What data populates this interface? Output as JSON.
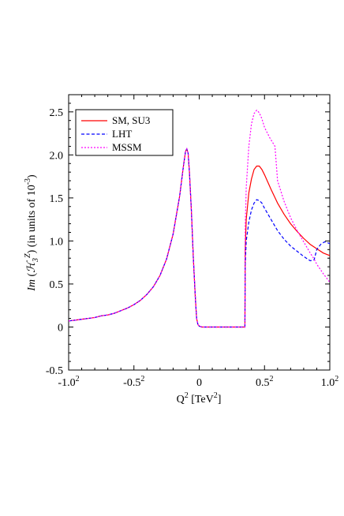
{
  "chart_data": {
    "type": "line",
    "xlabel": "Q² [TeV²]",
    "ylabel": "Im (ℋ₃ᶻ) (in units of 10⁻³)",
    "xlim": [
      -1.0,
      1.0
    ],
    "ylim": [
      -0.5,
      2.7
    ],
    "grid": false,
    "legend_position": "top-left",
    "x_ticks": [
      {
        "value": -1.0,
        "base": "-1.0",
        "exp": "2"
      },
      {
        "value": -0.5,
        "base": "-0.5",
        "exp": "2"
      },
      {
        "value": 0.0,
        "base": "0",
        "exp": ""
      },
      {
        "value": 0.5,
        "base": "0.5",
        "exp": "2"
      },
      {
        "value": 1.0,
        "base": "1.0",
        "exp": "2"
      }
    ],
    "y_ticks": [
      {
        "value": -0.5,
        "label": "-0.5"
      },
      {
        "value": 0,
        "label": "0"
      },
      {
        "value": 0.5,
        "label": "0.5"
      },
      {
        "value": 1.0,
        "label": "1.0"
      },
      {
        "value": 1.5,
        "label": "1.5"
      },
      {
        "value": 2.0,
        "label": "2.0"
      },
      {
        "value": 2.5,
        "label": "2.5"
      }
    ],
    "series": [
      {
        "name": "SM, SU3",
        "color": "#ff0000",
        "dash": "solid",
        "points": [
          [
            0.35,
            0.0
          ],
          [
            0.352,
            0.88
          ],
          [
            0.36,
            1.25
          ],
          [
            0.38,
            1.56
          ],
          [
            0.4,
            1.72
          ],
          [
            0.42,
            1.83
          ],
          [
            0.44,
            1.87
          ],
          [
            0.46,
            1.87
          ],
          [
            0.48,
            1.83
          ],
          [
            0.5,
            1.77
          ],
          [
            0.55,
            1.6
          ],
          [
            0.6,
            1.44
          ],
          [
            0.65,
            1.31
          ],
          [
            0.7,
            1.2
          ],
          [
            0.75,
            1.11
          ],
          [
            0.8,
            1.03
          ],
          [
            0.85,
            0.96
          ],
          [
            0.9,
            0.91
          ],
          [
            0.95,
            0.86
          ],
          [
            1.0,
            0.83
          ]
        ]
      },
      {
        "name": "LHT",
        "color": "#0000ff",
        "dash": "dashed",
        "points": [
          [
            0.35,
            0.0
          ],
          [
            0.352,
            0.7
          ],
          [
            0.36,
            1.0
          ],
          [
            0.38,
            1.22
          ],
          [
            0.4,
            1.36
          ],
          [
            0.42,
            1.44
          ],
          [
            0.44,
            1.48
          ],
          [
            0.46,
            1.47
          ],
          [
            0.48,
            1.44
          ],
          [
            0.5,
            1.38
          ],
          [
            0.55,
            1.25
          ],
          [
            0.6,
            1.12
          ],
          [
            0.65,
            1.02
          ],
          [
            0.7,
            0.94
          ],
          [
            0.75,
            0.88
          ],
          [
            0.8,
            0.82
          ],
          [
            0.85,
            0.77
          ],
          [
            0.88,
            0.78
          ],
          [
            0.9,
            0.9
          ],
          [
            0.93,
            0.96
          ],
          [
            0.96,
            0.99
          ],
          [
            1.0,
            0.97
          ]
        ]
      },
      {
        "name": "MSSM",
        "color": "#ff00ff",
        "dash": "dotted",
        "points": [
          [
            0.35,
            0.0
          ],
          [
            0.352,
            1.15
          ],
          [
            0.36,
            1.62
          ],
          [
            0.38,
            2.1
          ],
          [
            0.4,
            2.36
          ],
          [
            0.42,
            2.48
          ],
          [
            0.44,
            2.52
          ],
          [
            0.46,
            2.49
          ],
          [
            0.48,
            2.42
          ],
          [
            0.5,
            2.32
          ],
          [
            0.54,
            2.2
          ],
          [
            0.58,
            2.1
          ],
          [
            0.6,
            1.7
          ],
          [
            0.65,
            1.46
          ],
          [
            0.7,
            1.27
          ],
          [
            0.75,
            1.12
          ],
          [
            0.8,
            0.99
          ],
          [
            0.85,
            0.86
          ],
          [
            0.88,
            0.79
          ],
          [
            0.9,
            0.73
          ],
          [
            0.95,
            0.62
          ],
          [
            1.0,
            0.52
          ]
        ]
      }
    ],
    "shared_curve_points": [
      [
        -1.0,
        0.07
      ],
      [
        -0.95,
        0.08
      ],
      [
        -0.9,
        0.09
      ],
      [
        -0.85,
        0.1
      ],
      [
        -0.8,
        0.11
      ],
      [
        -0.75,
        0.13
      ],
      [
        -0.7,
        0.14
      ],
      [
        -0.65,
        0.16
      ],
      [
        -0.6,
        0.19
      ],
      [
        -0.55,
        0.22
      ],
      [
        -0.5,
        0.26
      ],
      [
        -0.45,
        0.31
      ],
      [
        -0.4,
        0.38
      ],
      [
        -0.35,
        0.47
      ],
      [
        -0.3,
        0.6
      ],
      [
        -0.25,
        0.79
      ],
      [
        -0.2,
        1.08
      ],
      [
        -0.15,
        1.52
      ],
      [
        -0.12,
        1.88
      ],
      [
        -0.105,
        2.04
      ],
      [
        -0.095,
        2.07
      ],
      [
        -0.085,
        2.02
      ],
      [
        -0.075,
        1.8
      ],
      [
        -0.06,
        1.35
      ],
      [
        -0.045,
        0.8
      ],
      [
        -0.03,
        0.35
      ],
      [
        -0.02,
        0.1
      ],
      [
        -0.01,
        0.03
      ],
      [
        0.0,
        0.01
      ],
      [
        0.02,
        0.0
      ],
      [
        0.35,
        0.0
      ]
    ]
  }
}
